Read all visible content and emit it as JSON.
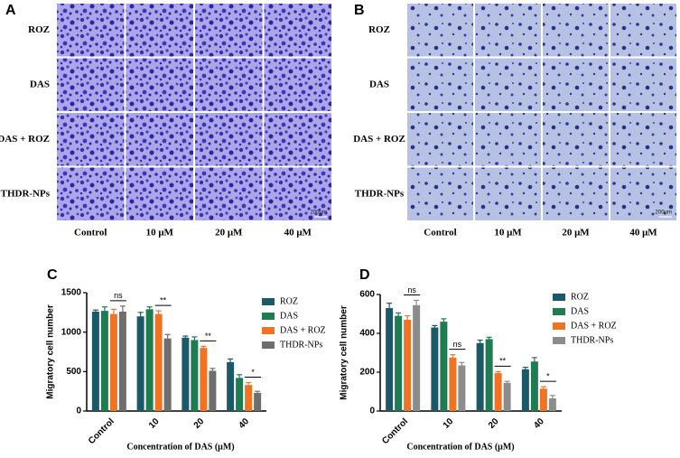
{
  "panel_a": {
    "label": "A",
    "rows": [
      "ROZ",
      "DAS",
      "DAS + ROZ",
      "THDR-NPs"
    ],
    "columns": [
      "Control",
      "10 μM",
      "20 μM",
      "40 μM"
    ],
    "scale_bar": "200μm"
  },
  "panel_b": {
    "label": "B",
    "rows": [
      "ROZ",
      "DAS",
      "DAS + ROZ",
      "THDR-NPs"
    ],
    "columns": [
      "Control",
      "10 μM",
      "20 μM",
      "40 μM"
    ],
    "scale_bar": "200μm"
  },
  "chart_data": [
    {
      "type": "bar",
      "label": "C",
      "y_label": "Migratory cell number",
      "x_label": "Concentration of DAS (μM)",
      "categories": [
        "Control",
        "10",
        "20",
        "40"
      ],
      "ylim": [
        0,
        1500
      ],
      "yticks": [
        0,
        500,
        1000,
        1500
      ],
      "series": [
        {
          "name": "ROZ",
          "color": "#1b5868",
          "values": [
            1260,
            1200,
            930,
            620
          ],
          "errors": [
            20,
            50,
            20,
            40
          ]
        },
        {
          "name": "DAS",
          "color": "#1e7b52",
          "values": [
            1270,
            1290,
            900,
            420
          ],
          "errors": [
            50,
            30,
            40,
            40
          ]
        },
        {
          "name": "DAS + ROZ",
          "color": "#f07324",
          "values": [
            1230,
            1230,
            800,
            330
          ],
          "errors": [
            60,
            40,
            20,
            30
          ]
        },
        {
          "name": "THDR-NPs",
          "color": "#6e6e6e",
          "values": [
            1260,
            920,
            510,
            230
          ],
          "errors": [
            70,
            50,
            30,
            20
          ]
        }
      ],
      "significance": [
        "ns",
        "**",
        "**",
        "*"
      ]
    },
    {
      "type": "bar",
      "label": "D",
      "y_label": "Migratory cell number",
      "x_label": "Concentration of DAS (μM)",
      "categories": [
        "Control",
        "10",
        "20",
        "40"
      ],
      "ylim": [
        0,
        600
      ],
      "yticks": [
        0,
        200,
        400,
        600
      ],
      "series": [
        {
          "name": "ROZ",
          "color": "#1b5868",
          "values": [
            530,
            430,
            350,
            215
          ],
          "errors": [
            25,
            10,
            15,
            10
          ]
        },
        {
          "name": "DAS",
          "color": "#1e7b52",
          "values": [
            490,
            460,
            370,
            255
          ],
          "errors": [
            15,
            15,
            10,
            20
          ]
        },
        {
          "name": "DAS + ROZ",
          "color": "#f07324",
          "values": [
            470,
            275,
            195,
            115
          ],
          "errors": [
            20,
            15,
            8,
            10
          ]
        },
        {
          "name": "THDR-NPs",
          "color": "#8c8c8c",
          "values": [
            545,
            235,
            145,
            65
          ],
          "errors": [
            25,
            15,
            8,
            15
          ]
        }
      ],
      "significance": [
        "ns",
        "ns",
        "**",
        "*"
      ]
    }
  ]
}
